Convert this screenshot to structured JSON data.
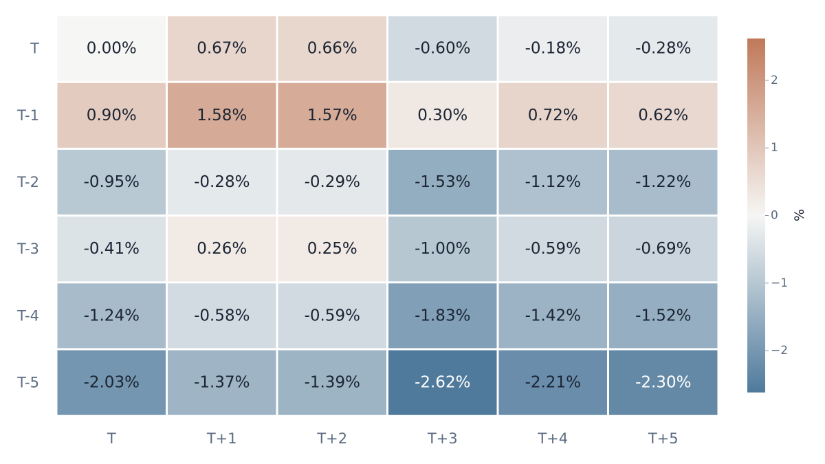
{
  "chart_data": {
    "type": "heatmap",
    "rows": [
      "T",
      "T-1",
      "T-2",
      "T-3",
      "T-4",
      "T-5"
    ],
    "columns": [
      "T",
      "T+1",
      "T+2",
      "T+3",
      "T+4",
      "T+5"
    ],
    "values": [
      [
        0.0,
        0.67,
        0.66,
        -0.6,
        -0.18,
        -0.28
      ],
      [
        0.9,
        1.58,
        1.57,
        0.3,
        0.72,
        0.62
      ],
      [
        -0.95,
        -0.28,
        -0.29,
        -1.53,
        -1.12,
        -1.22
      ],
      [
        -0.41,
        0.26,
        0.25,
        -1.0,
        -0.59,
        -0.69
      ],
      [
        -1.24,
        -0.58,
        -0.59,
        -1.83,
        -1.42,
        -1.52
      ],
      [
        -2.03,
        -1.37,
        -1.39,
        -2.62,
        -2.21,
        -2.3
      ]
    ],
    "cell_labels": [
      [
        "0.00%",
        "0.67%",
        "0.66%",
        "-0.60%",
        "-0.18%",
        "-0.28%"
      ],
      [
        "0.90%",
        "1.58%",
        "1.57%",
        "0.30%",
        "0.72%",
        "0.62%"
      ],
      [
        "-0.95%",
        "-0.28%",
        "-0.29%",
        "-1.53%",
        "-1.12%",
        "-1.22%"
      ],
      [
        "-0.41%",
        "0.26%",
        "0.25%",
        "-1.00%",
        "-0.59%",
        "-0.69%"
      ],
      [
        "-1.24%",
        "-0.58%",
        "-0.59%",
        "-1.83%",
        "-1.42%",
        "-1.52%"
      ],
      [
        "-2.03%",
        "-1.37%",
        "-1.39%",
        "-2.62%",
        "-2.21%",
        "-2.30%"
      ]
    ],
    "colorbar": {
      "title": "%",
      "range": [
        -2.62,
        2.62
      ],
      "ticks": [
        2,
        1,
        0,
        -1,
        -2
      ],
      "tick_labels": [
        "2",
        "1",
        "0",
        "−1",
        "−2"
      ],
      "colors": {
        "negative": "#4f7a9c",
        "neutral": "#f6f6f4",
        "positive": "#c0795a"
      }
    },
    "label_colors": {
      "dark": "#1b2433",
      "light": "#ffffff"
    },
    "grid": false
  }
}
